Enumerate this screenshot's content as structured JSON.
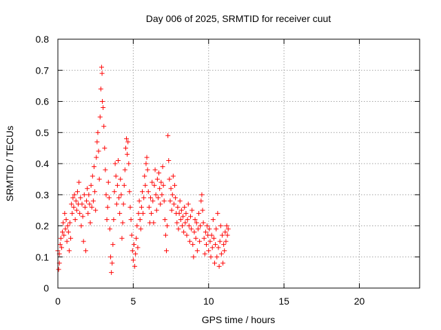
{
  "chart_data": {
    "type": "scatter",
    "title": "Day 006 of 2025, SRMTID for receiver cuut",
    "xlabel": "GPS time / hours",
    "ylabel": "SRMTID / TECUs",
    "xlim": [
      0,
      24
    ],
    "ylim": [
      0,
      0.8
    ],
    "x_ticks": [
      0,
      5,
      10,
      15,
      20
    ],
    "y_ticks": [
      0,
      0.1,
      0.2,
      0.3,
      0.4,
      0.5,
      0.6,
      0.7,
      0.8
    ],
    "x_tick_labels": [
      "0",
      "5",
      "10",
      "15",
      "20"
    ],
    "y_tick_labels": [
      "0",
      "0.1",
      "0.2",
      "0.3",
      "0.4",
      "0.5",
      "0.6",
      "0.7",
      "0.8"
    ],
    "grid": true,
    "marker": "+",
    "series": [
      {
        "name": "SRMTID",
        "color": "#ff0000",
        "points": [
          [
            0.0,
            0.12
          ],
          [
            0.05,
            0.06
          ],
          [
            0.1,
            0.11
          ],
          [
            0.1,
            0.08
          ],
          [
            0.15,
            0.14
          ],
          [
            0.2,
            0.16
          ],
          [
            0.25,
            0.13
          ],
          [
            0.3,
            0.18
          ],
          [
            0.35,
            0.21
          ],
          [
            0.4,
            0.17
          ],
          [
            0.45,
            0.24
          ],
          [
            0.5,
            0.19
          ],
          [
            0.55,
            0.22
          ],
          [
            0.6,
            0.15
          ],
          [
            0.65,
            0.2
          ],
          [
            0.7,
            0.18
          ],
          [
            0.75,
            0.12
          ],
          [
            0.8,
            0.21
          ],
          [
            0.85,
            0.16
          ],
          [
            0.9,
            0.27
          ],
          [
            0.95,
            0.24
          ],
          [
            1.0,
            0.29
          ],
          [
            1.05,
            0.26
          ],
          [
            1.1,
            0.3
          ],
          [
            1.15,
            0.22
          ],
          [
            1.2,
            0.28
          ],
          [
            1.25,
            0.25
          ],
          [
            1.3,
            0.31
          ],
          [
            1.35,
            0.27
          ],
          [
            1.4,
            0.34
          ],
          [
            1.45,
            0.24
          ],
          [
            1.5,
            0.29
          ],
          [
            1.55,
            0.2
          ],
          [
            1.6,
            0.27
          ],
          [
            1.65,
            0.23
          ],
          [
            1.7,
            0.15
          ],
          [
            1.75,
            0.3
          ],
          [
            1.8,
            0.26
          ],
          [
            1.85,
            0.12
          ],
          [
            1.9,
            0.28
          ],
          [
            1.95,
            0.32
          ],
          [
            2.0,
            0.24
          ],
          [
            2.05,
            0.3
          ],
          [
            2.1,
            0.27
          ],
          [
            2.15,
            0.21
          ],
          [
            2.2,
            0.33
          ],
          [
            2.25,
            0.26
          ],
          [
            2.3,
            0.36
          ],
          [
            2.35,
            0.28
          ],
          [
            2.4,
            0.39
          ],
          [
            2.45,
            0.31
          ],
          [
            2.5,
            0.25
          ],
          [
            2.55,
            0.42
          ],
          [
            2.6,
            0.47
          ],
          [
            2.65,
            0.5
          ],
          [
            2.7,
            0.44
          ],
          [
            2.75,
            0.35
          ],
          [
            2.8,
            0.55
          ],
          [
            2.85,
            0.64
          ],
          [
            2.9,
            0.71
          ],
          [
            2.93,
            0.69
          ],
          [
            2.95,
            0.6
          ],
          [
            3.0,
            0.58
          ],
          [
            3.05,
            0.52
          ],
          [
            3.1,
            0.45
          ],
          [
            3.15,
            0.38
          ],
          [
            3.2,
            0.3
          ],
          [
            3.25,
            0.22
          ],
          [
            3.3,
            0.26
          ],
          [
            3.35,
            0.34
          ],
          [
            3.4,
            0.29
          ],
          [
            3.45,
            0.19
          ],
          [
            3.5,
            0.1
          ],
          [
            3.55,
            0.05
          ],
          [
            3.6,
            0.08
          ],
          [
            3.65,
            0.14
          ],
          [
            3.7,
            0.22
          ],
          [
            3.75,
            0.31
          ],
          [
            3.8,
            0.4
          ],
          [
            3.85,
            0.36
          ],
          [
            3.9,
            0.27
          ],
          [
            3.95,
            0.33
          ],
          [
            4.0,
            0.41
          ],
          [
            4.05,
            0.29
          ],
          [
            4.1,
            0.24
          ],
          [
            4.15,
            0.35
          ],
          [
            4.2,
            0.3
          ],
          [
            4.25,
            0.16
          ],
          [
            4.3,
            0.21
          ],
          [
            4.35,
            0.27
          ],
          [
            4.4,
            0.33
          ],
          [
            4.45,
            0.38
          ],
          [
            4.5,
            0.45
          ],
          [
            4.55,
            0.48
          ],
          [
            4.6,
            0.43
          ],
          [
            4.65,
            0.47
          ],
          [
            4.7,
            0.4
          ],
          [
            4.75,
            0.31
          ],
          [
            4.8,
            0.26
          ],
          [
            4.85,
            0.22
          ],
          [
            4.9,
            0.17
          ],
          [
            4.95,
            0.12
          ],
          [
            5.0,
            0.09
          ],
          [
            5.05,
            0.14
          ],
          [
            5.1,
            0.07
          ],
          [
            5.15,
            0.11
          ],
          [
            5.2,
            0.16
          ],
          [
            5.25,
            0.2
          ],
          [
            5.3,
            0.13
          ],
          [
            5.35,
            0.24
          ],
          [
            5.4,
            0.28
          ],
          [
            5.45,
            0.22
          ],
          [
            5.5,
            0.19
          ],
          [
            5.55,
            0.26
          ],
          [
            5.6,
            0.31
          ],
          [
            5.65,
            0.24
          ],
          [
            5.7,
            0.29
          ],
          [
            5.75,
            0.36
          ],
          [
            5.8,
            0.33
          ],
          [
            5.85,
            0.4
          ],
          [
            5.9,
            0.42
          ],
          [
            5.95,
            0.38
          ],
          [
            6.0,
            0.31
          ],
          [
            6.05,
            0.26
          ],
          [
            6.1,
            0.21
          ],
          [
            6.15,
            0.29
          ],
          [
            6.2,
            0.24
          ],
          [
            6.25,
            0.34
          ],
          [
            6.3,
            0.28
          ],
          [
            6.35,
            0.21
          ],
          [
            6.4,
            0.33
          ],
          [
            6.45,
            0.38
          ],
          [
            6.5,
            0.3
          ],
          [
            6.55,
            0.25
          ],
          [
            6.6,
            0.35
          ],
          [
            6.65,
            0.29
          ],
          [
            6.7,
            0.37
          ],
          [
            6.75,
            0.32
          ],
          [
            6.8,
            0.27
          ],
          [
            6.85,
            0.34
          ],
          [
            6.9,
            0.3
          ],
          [
            6.95,
            0.39
          ],
          [
            7.0,
            0.33
          ],
          [
            7.05,
            0.28
          ],
          [
            7.1,
            0.22
          ],
          [
            7.15,
            0.17
          ],
          [
            7.2,
            0.12
          ],
          [
            7.25,
            0.2
          ],
          [
            7.3,
            0.49
          ],
          [
            7.35,
            0.41
          ],
          [
            7.4,
            0.35
          ],
          [
            7.45,
            0.28
          ],
          [
            7.5,
            0.32
          ],
          [
            7.55,
            0.25
          ],
          [
            7.6,
            0.3
          ],
          [
            7.65,
            0.36
          ],
          [
            7.7,
            0.27
          ],
          [
            7.75,
            0.33
          ],
          [
            7.8,
            0.29
          ],
          [
            7.85,
            0.24
          ],
          [
            7.9,
            0.21
          ],
          [
            7.95,
            0.26
          ],
          [
            8.0,
            0.19
          ],
          [
            8.05,
            0.24
          ],
          [
            8.1,
            0.28
          ],
          [
            8.15,
            0.22
          ],
          [
            8.2,
            0.25
          ],
          [
            8.25,
            0.2
          ],
          [
            8.3,
            0.23
          ],
          [
            8.35,
            0.18
          ],
          [
            8.4,
            0.26
          ],
          [
            8.45,
            0.21
          ],
          [
            8.5,
            0.24
          ],
          [
            8.55,
            0.17
          ],
          [
            8.6,
            0.22
          ],
          [
            8.65,
            0.27
          ],
          [
            8.7,
            0.2
          ],
          [
            8.75,
            0.15
          ],
          [
            8.8,
            0.23
          ],
          [
            8.85,
            0.19
          ],
          [
            8.9,
            0.25
          ],
          [
            8.95,
            0.14
          ],
          [
            9.0,
            0.1
          ],
          [
            9.05,
            0.18
          ],
          [
            9.1,
            0.22
          ],
          [
            9.15,
            0.16
          ],
          [
            9.2,
            0.21
          ],
          [
            9.25,
            0.12
          ],
          [
            9.3,
            0.19
          ],
          [
            9.35,
            0.24
          ],
          [
            9.4,
            0.15
          ],
          [
            9.45,
            0.2
          ],
          [
            9.5,
            0.28
          ],
          [
            9.55,
            0.3
          ],
          [
            9.6,
            0.25
          ],
          [
            9.65,
            0.21
          ],
          [
            9.7,
            0.16
          ],
          [
            9.75,
            0.11
          ],
          [
            9.8,
            0.18
          ],
          [
            9.85,
            0.14
          ],
          [
            9.9,
            0.2
          ],
          [
            9.95,
            0.17
          ],
          [
            10.0,
            0.12
          ],
          [
            10.05,
            0.19
          ],
          [
            10.1,
            0.15
          ],
          [
            10.15,
            0.1
          ],
          [
            10.2,
            0.17
          ],
          [
            10.25,
            0.13
          ],
          [
            10.3,
            0.22
          ],
          [
            10.35,
            0.16
          ],
          [
            10.4,
            0.08
          ],
          [
            10.45,
            0.14
          ],
          [
            10.5,
            0.19
          ],
          [
            10.55,
            0.1
          ],
          [
            10.6,
            0.24
          ],
          [
            10.65,
            0.13
          ],
          [
            10.7,
            0.07
          ],
          [
            10.75,
            0.15
          ],
          [
            10.8,
            0.2
          ],
          [
            10.85,
            0.11
          ],
          [
            10.9,
            0.17
          ],
          [
            10.95,
            0.08
          ],
          [
            11.0,
            0.14
          ],
          [
            11.05,
            0.12
          ],
          [
            11.1,
            0.18
          ],
          [
            11.15,
            0.15
          ],
          [
            11.2,
            0.2
          ],
          [
            11.25,
            0.17
          ],
          [
            11.3,
            0.19
          ]
        ]
      }
    ]
  }
}
